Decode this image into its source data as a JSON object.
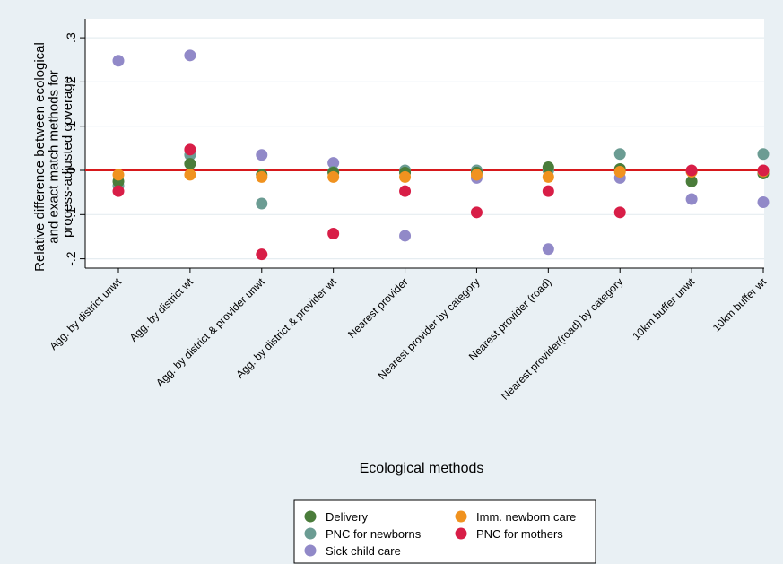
{
  "chart_data": {
    "type": "scatter",
    "ylabel": [
      "Relative difference between ecological",
      "and exact match methods for",
      "process-adjusted coverage"
    ],
    "xlabel": "Ecological methods",
    "ylim": [
      -0.22,
      0.31
    ],
    "yticks": [
      ".3",
      ".2",
      ".1",
      "0",
      "-.1",
      "-.2"
    ],
    "ytick_values": [
      0.3,
      0.2,
      0.1,
      0,
      -0.1,
      -0.2
    ],
    "categories": [
      "Agg. by district unwt",
      "Agg. by district wt",
      "Agg. by district & provider unwt",
      "Agg. by district & provider wt",
      "Nearest provider",
      "Nearest provider by category",
      "Nearest provider (road)",
      "Nearest provider(road) by category",
      "10km buffer unwt",
      "10km buffer wt"
    ],
    "reference_line": {
      "y": 0,
      "color": "#d7191c"
    },
    "grid": true,
    "legend_position": "bottom-center",
    "series": [
      {
        "name": "Delivery",
        "color": "#4a7c3a",
        "values": [
          -0.025,
          0.015,
          -0.01,
          -0.005,
          -0.005,
          -0.005,
          0.007,
          0.003,
          -0.025,
          -0.007
        ]
      },
      {
        "name": "Imm. newborn care",
        "color": "#f0921f",
        "values": [
          -0.01,
          -0.01,
          -0.015,
          -0.015,
          -0.015,
          -0.01,
          -0.015,
          -0.003,
          -0.003,
          -0.002
        ]
      },
      {
        "name": "PNC for newborns",
        "color": "#6b9c93",
        "values": [
          -0.035,
          0.035,
          -0.075,
          -0.003,
          0.0,
          0.0,
          0.0,
          0.037,
          -0.002,
          0.037
        ]
      },
      {
        "name": "PNC for mothers",
        "color": "#d81e47",
        "values": [
          -0.047,
          0.047,
          -0.19,
          -0.143,
          -0.047,
          -0.095,
          -0.047,
          -0.095,
          0.0,
          0.0
        ]
      },
      {
        "name": "Sick child care",
        "color": "#9189c8",
        "values": [
          0.248,
          0.26,
          0.035,
          0.017,
          -0.148,
          -0.017,
          -0.178,
          -0.017,
          -0.065,
          -0.072
        ]
      }
    ],
    "legend_order": [
      "Delivery",
      "Imm. newborn care",
      "PNC for newborns",
      "PNC for mothers",
      "Sick child care"
    ]
  }
}
